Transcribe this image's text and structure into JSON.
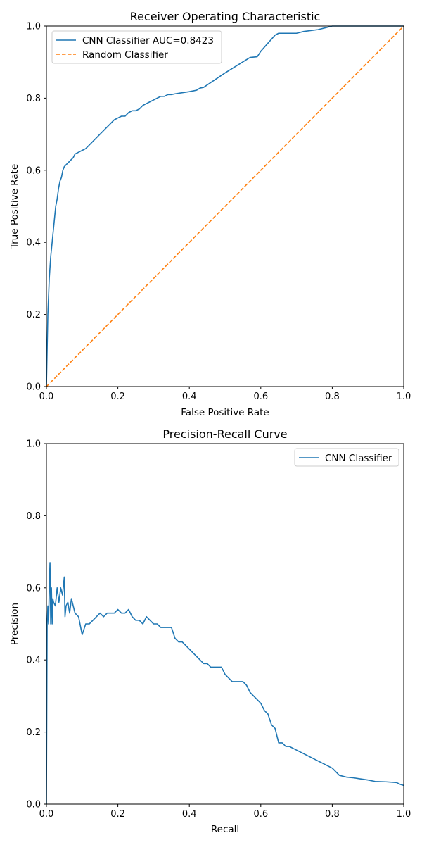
{
  "chart_data": [
    {
      "type": "line",
      "title": "Receiver Operating Characteristic",
      "xlabel": "False Positive Rate",
      "ylabel": "True Positive Rate",
      "xlim": [
        0,
        1
      ],
      "ylim": [
        0,
        1
      ],
      "xticks": [
        "0.0",
        "0.2",
        "0.4",
        "0.6",
        "0.8",
        "1.0"
      ],
      "yticks": [
        "0.0",
        "0.2",
        "0.4",
        "0.6",
        "0.8",
        "1.0"
      ],
      "grid": false,
      "legend_position": "top-left",
      "series": [
        {
          "name": "CNN Classifier AUC=0.8423",
          "color": "#1f77b4",
          "style": "solid",
          "x": [
            0,
            0.002,
            0.004,
            0.006,
            0.008,
            0.01,
            0.012,
            0.014,
            0.016,
            0.018,
            0.02,
            0.023,
            0.026,
            0.03,
            0.034,
            0.038,
            0.042,
            0.046,
            0.05,
            0.055,
            0.06,
            0.065,
            0.07,
            0.075,
            0.08,
            0.09,
            0.1,
            0.11,
            0.12,
            0.13,
            0.14,
            0.15,
            0.16,
            0.17,
            0.18,
            0.19,
            0.2,
            0.21,
            0.22,
            0.23,
            0.24,
            0.25,
            0.26,
            0.27,
            0.28,
            0.29,
            0.3,
            0.31,
            0.32,
            0.33,
            0.34,
            0.35,
            0.36,
            0.38,
            0.4,
            0.41,
            0.42,
            0.43,
            0.44,
            0.5,
            0.57,
            0.59,
            0.6,
            0.64,
            0.65,
            0.66,
            0.7,
            0.72,
            0.76,
            0.78,
            0.8,
            0.81,
            1.0
          ],
          "y": [
            0,
            0.1,
            0.2,
            0.25,
            0.3,
            0.33,
            0.36,
            0.38,
            0.4,
            0.42,
            0.44,
            0.47,
            0.5,
            0.52,
            0.55,
            0.57,
            0.58,
            0.6,
            0.61,
            0.615,
            0.62,
            0.625,
            0.63,
            0.635,
            0.645,
            0.65,
            0.655,
            0.66,
            0.67,
            0.68,
            0.69,
            0.7,
            0.71,
            0.72,
            0.73,
            0.74,
            0.745,
            0.75,
            0.75,
            0.76,
            0.765,
            0.765,
            0.77,
            0.78,
            0.785,
            0.79,
            0.795,
            0.8,
            0.805,
            0.805,
            0.81,
            0.81,
            0.812,
            0.815,
            0.818,
            0.82,
            0.822,
            0.828,
            0.83,
            0.87,
            0.913,
            0.915,
            0.93,
            0.975,
            0.98,
            0.98,
            0.98,
            0.985,
            0.99,
            0.995,
            1.0,
            1.0,
            1.0
          ]
        },
        {
          "name": "Random Classifier",
          "color": "#ff7f0e",
          "style": "dashed",
          "x": [
            0,
            1
          ],
          "y": [
            0,
            1
          ]
        }
      ]
    },
    {
      "type": "line",
      "title": "Precision-Recall Curve",
      "xlabel": "Recall",
      "ylabel": "Precision",
      "xlim": [
        0,
        1
      ],
      "ylim": [
        0,
        1
      ],
      "xticks": [
        "0.0",
        "0.2",
        "0.4",
        "0.6",
        "0.8",
        "1.0"
      ],
      "yticks": [
        "0.0",
        "0.2",
        "0.4",
        "0.6",
        "0.8",
        "1.0"
      ],
      "grid": false,
      "legend_position": "top-right",
      "series": [
        {
          "name": "CNN Classifier",
          "color": "#1f77b4",
          "style": "solid",
          "x": [
            0,
            0.002,
            0.004,
            0.006,
            0.008,
            0.01,
            0.012,
            0.014,
            0.016,
            0.018,
            0.02,
            0.025,
            0.03,
            0.035,
            0.04,
            0.045,
            0.05,
            0.052,
            0.055,
            0.06,
            0.065,
            0.07,
            0.08,
            0.09,
            0.1,
            0.11,
            0.12,
            0.13,
            0.14,
            0.15,
            0.16,
            0.17,
            0.18,
            0.19,
            0.2,
            0.21,
            0.22,
            0.23,
            0.24,
            0.25,
            0.26,
            0.27,
            0.28,
            0.29,
            0.3,
            0.31,
            0.32,
            0.33,
            0.34,
            0.35,
            0.36,
            0.37,
            0.38,
            0.39,
            0.4,
            0.41,
            0.42,
            0.43,
            0.44,
            0.45,
            0.46,
            0.47,
            0.48,
            0.49,
            0.5,
            0.52,
            0.54,
            0.55,
            0.56,
            0.57,
            0.58,
            0.59,
            0.6,
            0.61,
            0.62,
            0.63,
            0.64,
            0.645,
            0.65,
            0.66,
            0.67,
            0.68,
            0.7,
            0.72,
            0.74,
            0.76,
            0.78,
            0.8,
            0.81,
            0.82,
            0.84,
            0.86,
            0.88,
            0.9,
            0.92,
            0.95,
            0.98,
            0.99,
            1.0
          ],
          "y": [
            0.0,
            0.5,
            0.55,
            0.5,
            0.6,
            0.67,
            0.5,
            0.6,
            0.5,
            0.57,
            0.56,
            0.55,
            0.6,
            0.56,
            0.6,
            0.58,
            0.63,
            0.52,
            0.55,
            0.56,
            0.53,
            0.57,
            0.53,
            0.52,
            0.47,
            0.5,
            0.5,
            0.51,
            0.52,
            0.53,
            0.52,
            0.53,
            0.53,
            0.53,
            0.54,
            0.53,
            0.53,
            0.54,
            0.52,
            0.51,
            0.51,
            0.5,
            0.52,
            0.51,
            0.5,
            0.5,
            0.49,
            0.49,
            0.49,
            0.49,
            0.46,
            0.45,
            0.45,
            0.44,
            0.43,
            0.42,
            0.41,
            0.4,
            0.39,
            0.39,
            0.38,
            0.38,
            0.38,
            0.38,
            0.36,
            0.34,
            0.34,
            0.34,
            0.33,
            0.31,
            0.3,
            0.29,
            0.28,
            0.26,
            0.25,
            0.22,
            0.21,
            0.19,
            0.17,
            0.17,
            0.16,
            0.16,
            0.15,
            0.14,
            0.13,
            0.12,
            0.11,
            0.1,
            0.09,
            0.08,
            0.075,
            0.073,
            0.07,
            0.067,
            0.063,
            0.062,
            0.06,
            0.055,
            0.052
          ]
        }
      ]
    }
  ]
}
